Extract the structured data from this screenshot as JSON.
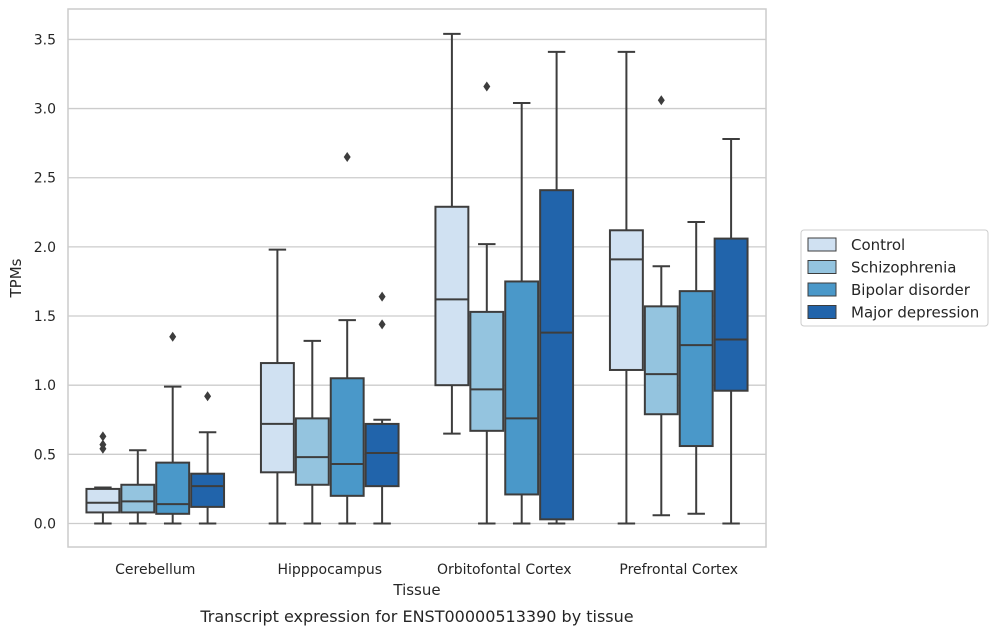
{
  "chart_data": {
    "type": "box",
    "xlabel": "Tissue",
    "ylabel": "TPMs",
    "caption": "Transcript expression for ENST00000513390 by tissue",
    "ylim": [
      -0.17,
      3.72
    ],
    "yticks": [
      0.0,
      0.5,
      1.0,
      1.5,
      2.0,
      2.5,
      3.0,
      3.5
    ],
    "ytick_labels": [
      "0.0",
      "0.5",
      "1.0",
      "1.5",
      "2.0",
      "2.5",
      "3.0",
      "3.5"
    ],
    "grid": "horizontal",
    "legend_position": "right",
    "categories": [
      "Cerebellum",
      "Hipppocampus",
      "Orbitofontal Cortex",
      "Prefrontal Cortex"
    ],
    "series": [
      {
        "name": "Control",
        "color": "#d0e1f2",
        "boxes": [
          {
            "whislo": 0.0,
            "q1": 0.08,
            "med": 0.15,
            "q3": 0.25,
            "whishi": 0.26,
            "fliers": [
              0.54,
              0.57,
              0.63
            ]
          },
          {
            "whislo": 0.0,
            "q1": 0.37,
            "med": 0.72,
            "q3": 1.16,
            "whishi": 1.98,
            "fliers": []
          },
          {
            "whislo": 0.65,
            "q1": 1.0,
            "med": 1.62,
            "q3": 2.29,
            "whishi": 3.54,
            "fliers": []
          },
          {
            "whislo": 0.0,
            "q1": 1.11,
            "med": 1.91,
            "q3": 2.12,
            "whishi": 3.41,
            "fliers": []
          }
        ]
      },
      {
        "name": "Schizophrenia",
        "color": "#94c4df",
        "boxes": [
          {
            "whislo": 0.0,
            "q1": 0.08,
            "med": 0.16,
            "q3": 0.28,
            "whishi": 0.53,
            "fliers": []
          },
          {
            "whislo": 0.0,
            "q1": 0.28,
            "med": 0.48,
            "q3": 0.76,
            "whishi": 1.32,
            "fliers": []
          },
          {
            "whislo": 0.0,
            "q1": 0.67,
            "med": 0.97,
            "q3": 1.53,
            "whishi": 2.02,
            "fliers": [
              3.16
            ]
          },
          {
            "whislo": 0.06,
            "q1": 0.79,
            "med": 1.08,
            "q3": 1.57,
            "whishi": 1.86,
            "fliers": [
              3.06
            ]
          }
        ]
      },
      {
        "name": "Bipolar disorder",
        "color": "#4a98c9",
        "boxes": [
          {
            "whislo": 0.0,
            "q1": 0.07,
            "med": 0.14,
            "q3": 0.44,
            "whishi": 0.99,
            "fliers": [
              1.35
            ]
          },
          {
            "whislo": 0.0,
            "q1": 0.2,
            "med": 0.43,
            "q3": 1.05,
            "whishi": 1.47,
            "fliers": [
              2.65
            ]
          },
          {
            "whislo": 0.0,
            "q1": 0.21,
            "med": 0.76,
            "q3": 1.75,
            "whishi": 3.04,
            "fliers": []
          },
          {
            "whislo": 0.07,
            "q1": 0.56,
            "med": 1.29,
            "q3": 1.68,
            "whishi": 2.18,
            "fliers": []
          }
        ]
      },
      {
        "name": "Major depression",
        "color": "#2164ab",
        "boxes": [
          {
            "whislo": 0.0,
            "q1": 0.12,
            "med": 0.27,
            "q3": 0.36,
            "whishi": 0.66,
            "fliers": [
              0.92
            ]
          },
          {
            "whislo": 0.0,
            "q1": 0.27,
            "med": 0.51,
            "q3": 0.72,
            "whishi": 0.75,
            "fliers": [
              1.44,
              1.64
            ]
          },
          {
            "whislo": 0.0,
            "q1": 0.03,
            "med": 1.38,
            "q3": 2.41,
            "whishi": 3.41,
            "fliers": []
          },
          {
            "whislo": 0.0,
            "q1": 0.96,
            "med": 1.33,
            "q3": 2.06,
            "whishi": 2.78,
            "fliers": []
          }
        ]
      }
    ]
  }
}
